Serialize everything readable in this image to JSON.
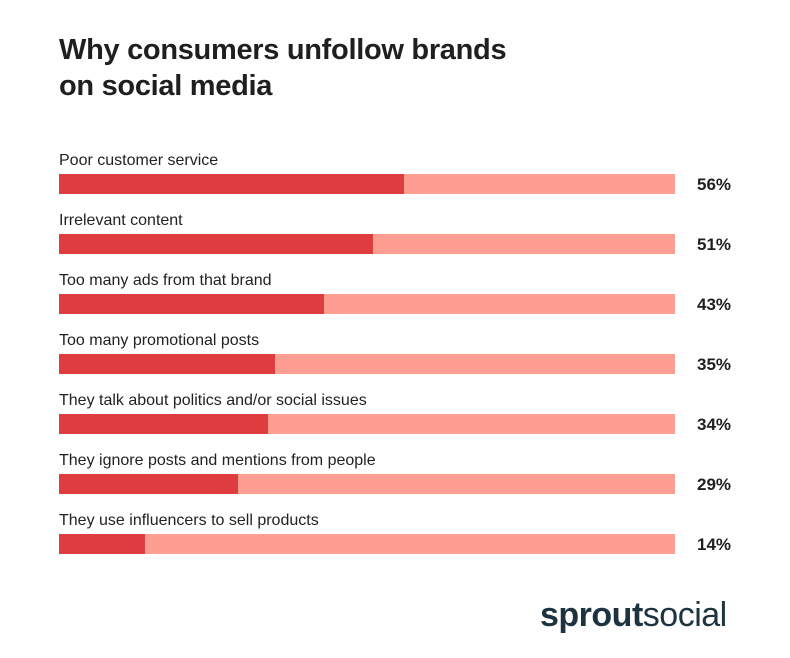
{
  "chart_data": {
    "type": "bar",
    "orientation": "horizontal",
    "title": "Why consumers unfollow brands on social media",
    "title_lines": [
      "Why consumers unfollow brands",
      "on social media"
    ],
    "categories": [
      "Poor customer service",
      "Irrelevant content",
      "Too many ads from that brand",
      "Too many promotional posts",
      "They talk about politics and/or social issues",
      "They ignore posts and mentions from people",
      "They use influencers to sell products"
    ],
    "values": [
      56,
      51,
      43,
      35,
      34,
      29,
      14
    ],
    "value_labels": [
      "56%",
      "51%",
      "43%",
      "35%",
      "34%",
      "29%",
      "14%"
    ],
    "xlim": [
      0,
      100
    ],
    "unit": "%",
    "xlabel": "",
    "ylabel": "",
    "grid": false,
    "colors": {
      "fill": "#df3c3f",
      "track": "#fe9d91"
    }
  },
  "branding": {
    "logo_bold": "sprout",
    "logo_light": "social"
  }
}
